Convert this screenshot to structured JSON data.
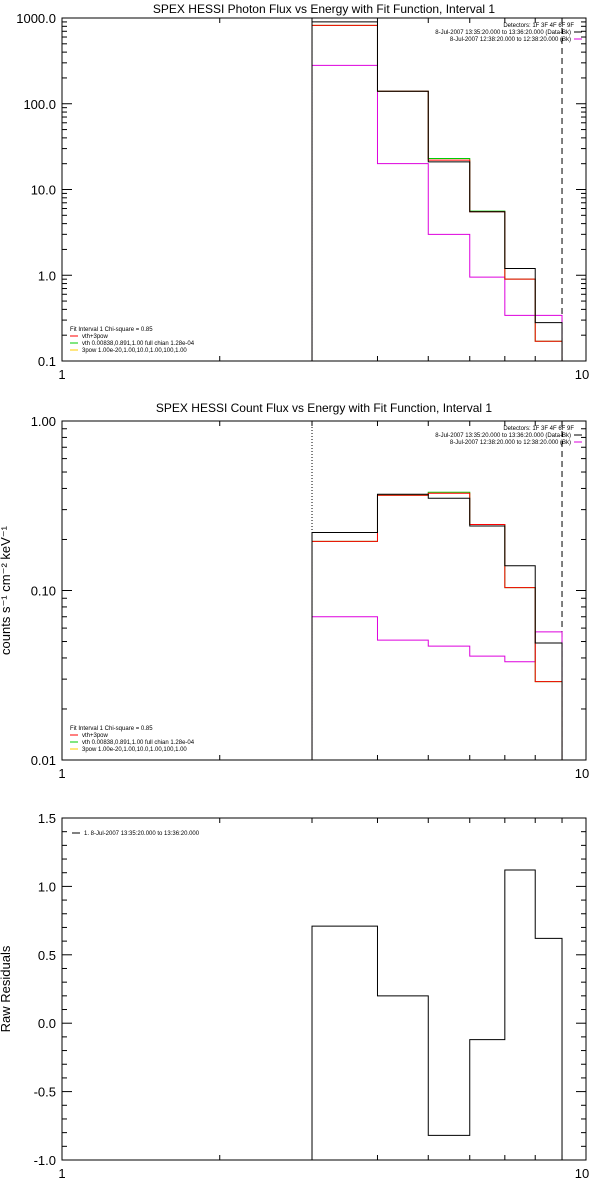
{
  "chart_data": [
    {
      "type": "line",
      "title": "SPEX HESSI Photon Flux vs Energy with Fit Function, Interval 1",
      "xscale": "log",
      "yscale": "log",
      "xlim": [
        1,
        10
      ],
      "ylim": [
        0.1,
        1000.0
      ],
      "xtick_labels": [
        "1",
        "10"
      ],
      "ytick_labels": [
        "0.1",
        "1.0",
        "10.0",
        "100.0",
        "1000.0"
      ],
      "ylabel": "",
      "bin_edges": [
        3.0,
        4.0,
        5.0,
        6.0,
        7.0,
        8.0,
        9.0
      ],
      "series": [
        {
          "name": "8-Jul-2007 13:35:20.000 to 13:36:20.000 (Data-Bk)",
          "color": "#000000",
          "values": [
            900,
            140,
            21,
            5.5,
            1.2,
            0.28
          ]
        },
        {
          "name": "vth+3pow",
          "color": "#ff0000",
          "values": [
            820,
            140,
            22,
            5.5,
            0.9,
            0.17
          ]
        },
        {
          "name": "vth 0.00838,0.891,1.00 full chian 1.28e-04",
          "color": "#00cc00",
          "values": [
            820,
            140,
            23,
            5.6,
            0.9,
            0.17
          ]
        },
        {
          "name": "8-Jul-2007 12:38:20.000 to 12:38:20.000 (Bk)",
          "color": "#dd00dd",
          "values": [
            280,
            20,
            3.0,
            0.95,
            0.34,
            0.34
          ]
        }
      ],
      "markers": [
        {
          "x": 3.0,
          "style": "dotted"
        },
        {
          "x": 9.0,
          "style": "dashed"
        }
      ],
      "legend_top_right": {
        "header": "Detectors: 1F 3F 4F 6F 9F",
        "entries": [
          {
            "text": "8-Jul-2007 13:35:20.000 to 13:36:20.000 (Data-Bk)",
            "color": "#000000"
          },
          {
            "text": "8-Jul-2007 12:38:20.000 to 12:38:20.000 (Bk)",
            "color": "#dd00dd"
          }
        ]
      },
      "legend_bottom_left": {
        "header": "Fit Interval 1    Chi-square = 0.85",
        "entries": [
          {
            "text": "vth+3pow",
            "color": "#ff0000"
          },
          {
            "text": "vth 0.00838,0.891,1.00  full chian 1.28e-04",
            "color": "#00cc00"
          },
          {
            "text": "3pow 1.00e-20,1.00,10.0,1.00,100,1.00",
            "color": "#ffcc00"
          }
        ]
      }
    },
    {
      "type": "line",
      "title": "SPEX HESSI Count Flux vs Energy with Fit Function, Interval 1",
      "xscale": "log",
      "yscale": "log",
      "xlim": [
        1,
        10
      ],
      "ylim": [
        0.01,
        1.0
      ],
      "xtick_labels": [
        "1",
        "10"
      ],
      "ytick_labels": [
        "0.01",
        "0.10",
        "1.00"
      ],
      "ylabel": "counts s⁻¹ cm⁻² keV⁻¹",
      "bin_edges": [
        3.0,
        4.0,
        5.0,
        6.0,
        7.0,
        8.0,
        9.0
      ],
      "series": [
        {
          "name": "8-Jul-2007 13:35:20.000 to 13:36:20.000 (Data-Bk)",
          "color": "#000000",
          "values": [
            0.22,
            0.37,
            0.35,
            0.24,
            0.14,
            0.049
          ]
        },
        {
          "name": "vth+3pow",
          "color": "#ff0000",
          "values": [
            0.195,
            0.365,
            0.375,
            0.245,
            0.104,
            0.029
          ]
        },
        {
          "name": "vth 0.00838,0.891,1.00 full chian 1.28e-04",
          "color": "#00cc00",
          "values": [
            0.195,
            0.365,
            0.38,
            0.245,
            0.104,
            0.029
          ]
        },
        {
          "name": "8-Jul-2007 12:38:20.000 to 12:38:20.000 (Bk)",
          "color": "#dd00dd",
          "values": [
            0.07,
            0.051,
            0.047,
            0.041,
            0.038,
            0.057
          ]
        }
      ],
      "markers": [
        {
          "x": 3.0,
          "style": "dotted"
        },
        {
          "x": 9.0,
          "style": "dashed"
        }
      ],
      "legend_top_right": {
        "header": "Detectors: 1F 3F 4F 6F 9F",
        "entries": [
          {
            "text": "8-Jul-2007 13:35:20.000 to 13:36:20.000 (Data-Bk)",
            "color": "#000000"
          },
          {
            "text": "8-Jul-2007 12:38:20.000 to 12:38:20.000 (Bk)",
            "color": "#dd00dd"
          }
        ]
      },
      "legend_bottom_left": {
        "header": "Fit Interval 1    Chi-square = 0.85",
        "entries": [
          {
            "text": "vth+3pow",
            "color": "#ff0000"
          },
          {
            "text": "vth 0.00838,0.891,1.00  full chian 1.28e-04",
            "color": "#00cc00"
          },
          {
            "text": "3pow 1.00e-20,1.00,10.0,1.00,100,1.00",
            "color": "#ffcc00"
          }
        ]
      }
    },
    {
      "type": "line",
      "title": "",
      "xscale": "log",
      "yscale": "linear",
      "xlim": [
        1,
        10
      ],
      "ylim": [
        -1.0,
        1.5
      ],
      "xtick_labels": [
        "1",
        "10"
      ],
      "ytick_labels": [
        "-1.0",
        "-0.5",
        "0.0",
        "0.5",
        "1.0",
        "1.5"
      ],
      "ylabel": "Raw Residuals",
      "bin_edges": [
        3.0,
        4.0,
        5.0,
        6.0,
        7.0,
        8.0,
        9.0
      ],
      "series": [
        {
          "name": "1.  8-Jul-2007 13:35:20.000 to 13:36:20.000",
          "color": "#000000",
          "values": [
            0.71,
            0.2,
            -0.82,
            -0.12,
            1.12,
            0.62
          ]
        }
      ],
      "markers": [],
      "legend_top_left": {
        "entries": [
          {
            "text": "1.  8-Jul-2007 13:35:20.000 to 13:36:20.000",
            "color": "#000000"
          }
        ]
      }
    }
  ]
}
